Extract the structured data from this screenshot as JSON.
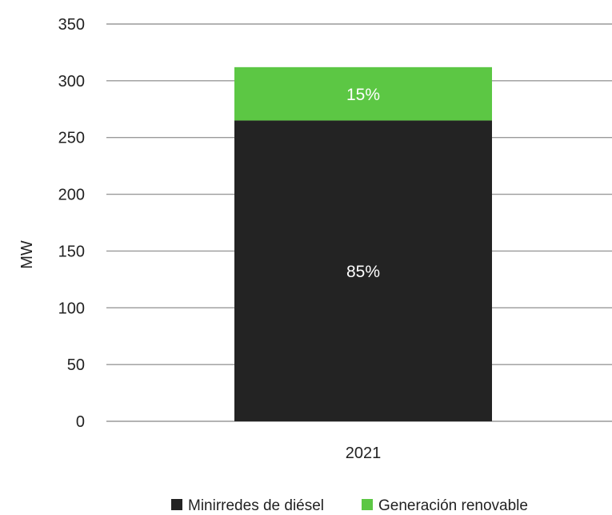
{
  "chart_data": {
    "type": "bar",
    "stacked": true,
    "categories": [
      "2021"
    ],
    "ylabel": "MW",
    "ylim": [
      0,
      350
    ],
    "yticks": [
      0,
      50,
      100,
      150,
      200,
      250,
      300,
      350
    ],
    "grid": true,
    "legend_position": "bottom",
    "series": [
      {
        "name": "Minirredes de diésel",
        "values": [
          265
        ],
        "label": "85%",
        "color": "#232323"
      },
      {
        "name": "Generación renovable",
        "values": [
          47
        ],
        "label": "15%",
        "color": "#5cc744"
      }
    ]
  },
  "colors": {
    "grid": "#9a9a9a",
    "text": "#222222"
  }
}
